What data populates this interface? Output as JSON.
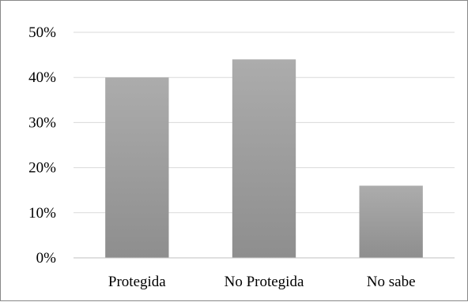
{
  "chart_data": {
    "type": "bar",
    "categories": [
      "Protegida",
      "No Protegida",
      "No sabe"
    ],
    "values": [
      40,
      44,
      16
    ],
    "value_unit": "%",
    "title": "",
    "xlabel": "",
    "ylabel": "",
    "ylim": [
      0,
      50
    ],
    "yticks": [
      "0%",
      "10%",
      "20%",
      "30%",
      "40%",
      "50%"
    ],
    "grid": true,
    "legend": "none",
    "colors": {
      "bar_top": "#acacac",
      "bar_bottom": "#8e8e8e",
      "grid": "#d9d9d9",
      "axis": "#bfbfbf"
    }
  }
}
